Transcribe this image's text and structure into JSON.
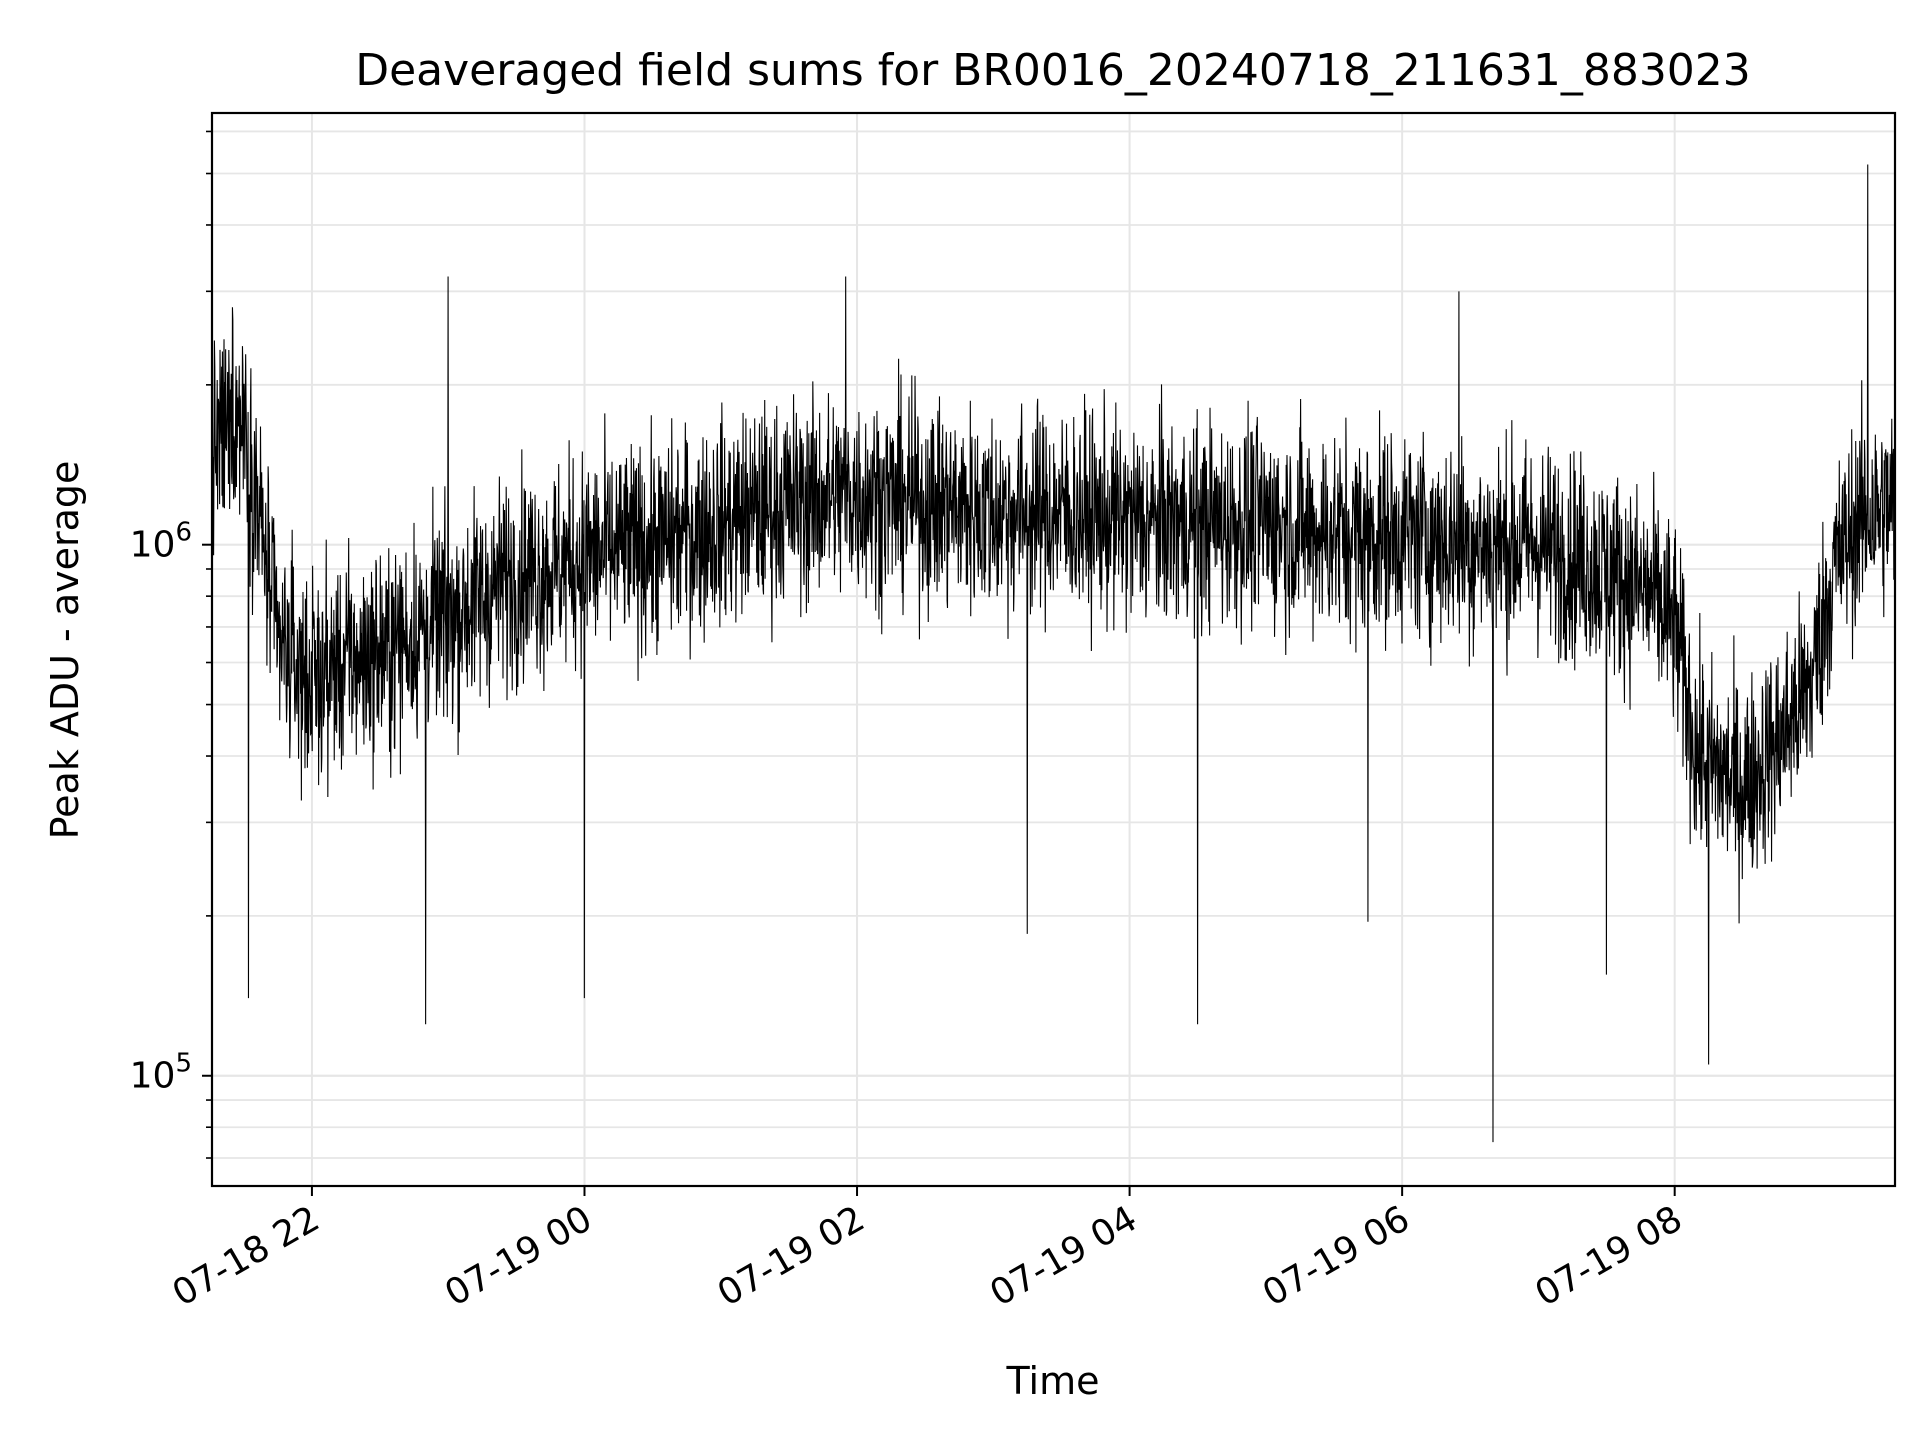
{
  "chart_data": {
    "type": "line",
    "title": "Deaveraged field sums for BR0016_20240718_211631_883023",
    "xlabel": "Time",
    "ylabel": "Peak ADU - average",
    "y_scale": "log",
    "ylim": [
      62000,
      6500000
    ],
    "xlim": [
      "2024-07-18 21:16",
      "2024-07-19 09:37"
    ],
    "grid": true,
    "line_color": "#000000",
    "grid_color": "#e6e6e6",
    "x_ticks": [
      {
        "time": "2024-07-18 22:00",
        "label": "07-18 22"
      },
      {
        "time": "2024-07-19 00:00",
        "label": "07-19 00"
      },
      {
        "time": "2024-07-19 02:00",
        "label": "07-19 02"
      },
      {
        "time": "2024-07-19 04:00",
        "label": "07-19 04"
      },
      {
        "time": "2024-07-19 06:00",
        "label": "07-19 06"
      },
      {
        "time": "2024-07-19 08:00",
        "label": "07-19 08"
      }
    ],
    "y_ticks": [
      {
        "value": 100000,
        "base": "10",
        "exp": "5"
      },
      {
        "value": 1000000,
        "base": "10",
        "exp": "6"
      }
    ],
    "series": [
      {
        "points": [
          [
            "2024-07-18 21:16",
            1500000
          ],
          [
            "2024-07-18 21:30",
            1800000
          ],
          [
            "2024-07-18 21:45",
            650000
          ],
          [
            "2024-07-18 22:00",
            550000
          ],
          [
            "2024-07-18 22:15",
            600000
          ],
          [
            "2024-07-18 22:30",
            620000
          ],
          [
            "2024-07-18 22:45",
            680000
          ],
          [
            "2024-07-18 23:00",
            720000
          ],
          [
            "2024-07-18 23:15",
            800000
          ],
          [
            "2024-07-18 23:30",
            880000
          ],
          [
            "2024-07-18 23:45",
            900000
          ],
          [
            "2024-07-19 00:00",
            950000
          ],
          [
            "2024-07-19 00:30",
            1000000
          ],
          [
            "2024-07-19 01:00",
            1100000
          ],
          [
            "2024-07-19 01:30",
            1200000
          ],
          [
            "2024-07-19 02:00",
            1250000
          ],
          [
            "2024-07-19 02:30",
            1200000
          ],
          [
            "2024-07-19 03:00",
            1150000
          ],
          [
            "2024-07-19 03:30",
            1150000
          ],
          [
            "2024-07-19 04:00",
            1100000
          ],
          [
            "2024-07-19 04:30",
            1100000
          ],
          [
            "2024-07-19 05:00",
            1100000
          ],
          [
            "2024-07-19 05:30",
            1050000
          ],
          [
            "2024-07-19 06:00",
            1050000
          ],
          [
            "2024-07-19 06:30",
            1000000
          ],
          [
            "2024-07-19 07:00",
            1000000
          ],
          [
            "2024-07-19 07:30",
            900000
          ],
          [
            "2024-07-19 07:50",
            800000
          ],
          [
            "2024-07-19 08:00",
            700000
          ],
          [
            "2024-07-19 08:10",
            400000
          ],
          [
            "2024-07-19 08:30",
            350000
          ],
          [
            "2024-07-19 08:45",
            420000
          ],
          [
            "2024-07-19 09:00",
            550000
          ],
          [
            "2024-07-19 09:10",
            900000
          ],
          [
            "2024-07-19 09:20",
            1100000
          ],
          [
            "2024-07-19 09:37",
            1200000
          ]
        ],
        "spikes": [
          [
            "2024-07-18 21:25",
            2800000
          ],
          [
            "2024-07-18 21:32",
            140000
          ],
          [
            "2024-07-18 22:50",
            125000
          ],
          [
            "2024-07-18 23:00",
            3200000
          ],
          [
            "2024-07-19 00:00",
            140000
          ],
          [
            "2024-07-19 01:55",
            3200000
          ],
          [
            "2024-07-19 03:15",
            185000
          ],
          [
            "2024-07-19 04:30",
            125000
          ],
          [
            "2024-07-19 05:45",
            195000
          ],
          [
            "2024-07-19 06:25",
            3000000
          ],
          [
            "2024-07-19 06:40",
            75000
          ],
          [
            "2024-07-19 07:30",
            155000
          ],
          [
            "2024-07-19 08:15",
            105000
          ],
          [
            "2024-07-19 09:25",
            5200000
          ]
        ]
      }
    ]
  }
}
